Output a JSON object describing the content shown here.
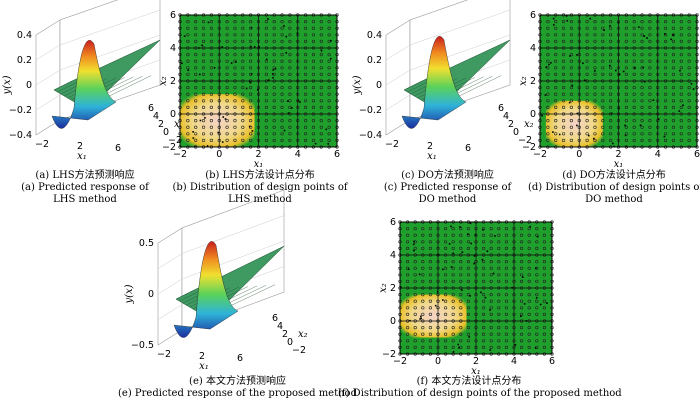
{
  "captions": {
    "a": {
      "cn": "(a) LHS方法预测响应",
      "en1": "(a) Predicted response of",
      "en2": "LHS method"
    },
    "b": {
      "cn": "(b) LHS方法设计点分布",
      "en1": "(b) Distribution of design points of",
      "en2": "LHS method"
    },
    "c": {
      "cn": "(c) DO方法预测响应",
      "en1": "(c) Predicted response of",
      "en2": "DO method"
    },
    "d": {
      "cn": "(d) DO方法设计点分布",
      "en1": "(d) Distribution of design points of",
      "en2": "DO method"
    },
    "e": {
      "cn": "(e) 本文方法预测响应",
      "en1": "(e) Predicted response of the proposed method"
    },
    "f": {
      "cn": "(f) 本文方法设计点分布",
      "en1": "(f) Distribution of design points of the proposed method"
    }
  },
  "surface_axes": {
    "zlabel": "y(x)",
    "x1label": "x₁",
    "x2label": "x₂",
    "x1ticks": [
      "−2",
      "2",
      "6"
    ],
    "x2ticks": [
      "−2",
      "0",
      "2",
      "4",
      "6"
    ],
    "z_ticks_ac": [
      "0.4",
      "0.2",
      "0",
      "−0.2",
      "−0.4"
    ],
    "z_ticks_e": [
      "0.5",
      "0",
      "−0.5"
    ]
  },
  "scatter_axes": {
    "xlabel": "x₁",
    "ylabel": "x₂",
    "ticks": [
      "−2",
      "0",
      "2",
      "4",
      "6"
    ]
  },
  "colors": {
    "field_green": "#1fa02c",
    "hot": "#f4d2c8",
    "warm": "#e9c02a",
    "grid": "#0a0a0a"
  }
}
